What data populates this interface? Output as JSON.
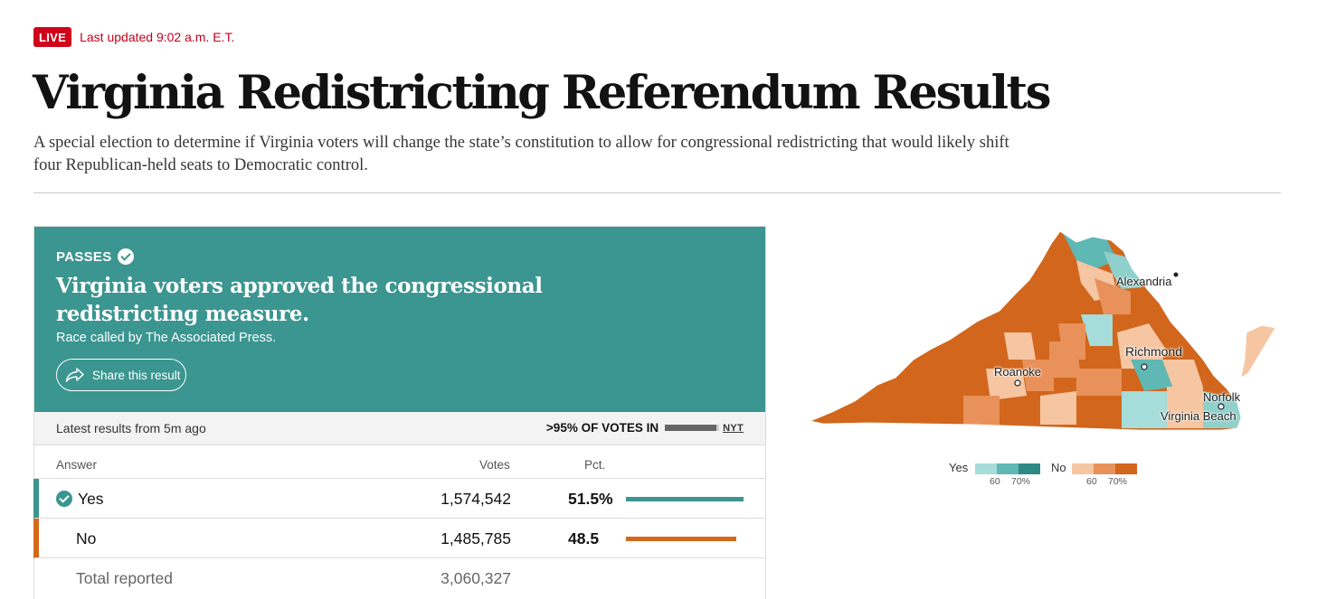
{
  "header": {
    "live_badge": "LIVE",
    "updated": "Last updated 9:02 a.m. E.T.",
    "title": "Virginia Redistricting Referendum Results",
    "description": "A special election to determine if Virginia voters will change the state’s constitution to allow for congressional redistricting that would likely shift four Republican-held seats to Democratic control."
  },
  "result_card": {
    "status": "PASSES",
    "headline": "Virginia voters approved the congressional redistricting measure.",
    "called_by": "Race called by The Associated Press.",
    "share_label": "Share this result",
    "latest": "Latest results from 5m ago",
    "votes_in": ">95% OF VOTES IN",
    "votes_in_fraction": 0.95,
    "source": "NYT",
    "columns": {
      "answer": "Answer",
      "votes": "Votes",
      "pct": "Pct."
    },
    "rows": [
      {
        "answer": "Yes",
        "votes": "1,574,542",
        "pct": "51.5%",
        "pct_value": 51.5,
        "color": "#3b9590",
        "winner": true
      },
      {
        "answer": "No",
        "votes": "1,485,785",
        "pct": "48.5",
        "pct_value": 48.5,
        "color": "#d4691c",
        "winner": false
      }
    ],
    "total": {
      "label": "Total reported",
      "votes": "3,060,327"
    }
  },
  "map": {
    "labels": {
      "alexandria": "Alexandria",
      "richmond": "Richmond",
      "roanoke": "Roanoke",
      "norfolk": "Norfolk",
      "virginia_beach": "Virginia Beach"
    },
    "legend": {
      "yes_label": "Yes",
      "no_label": "No",
      "tick_60": "60",
      "tick_70": "70%",
      "yes_colors": [
        "#a6dcd9",
        "#5fb8b3",
        "#2e8a85"
      ],
      "no_colors": [
        "#f6c6a3",
        "#e9915a",
        "#d2661c"
      ]
    }
  }
}
